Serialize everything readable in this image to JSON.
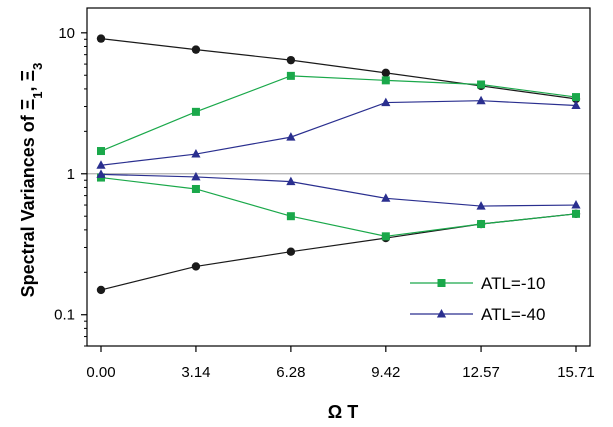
{
  "chart_data": {
    "type": "line",
    "title": "",
    "xlabel": "Ω T",
    "ylabel_main": "Spectral Variances of ",
    "ylabel_sym1": "Ξ",
    "ylabel_sub1": "1",
    "ylabel_sep": ", ",
    "ylabel_sym2": "Ξ",
    "ylabel_sub2": "3",
    "y_scale": "log",
    "xlim": [
      0,
      15.71
    ],
    "ylim": [
      0.06,
      15
    ],
    "x_ticks": [
      "0.00",
      "3.14",
      "6.28",
      "9.42",
      "12.57",
      "15.71"
    ],
    "x": [
      0,
      3.14,
      6.28,
      9.42,
      12.57,
      15.71
    ],
    "y_ticks": [
      "0.1",
      "1",
      "10"
    ],
    "y_tick_values": [
      0.1,
      1,
      10
    ],
    "reference_line": 1,
    "reference_color": "#b0b0b0",
    "legend_position": "bottom-right",
    "series": [
      {
        "legend": "",
        "marker": "circle",
        "color": "#1a1a1a",
        "values": [
          9.1,
          7.6,
          6.4,
          5.2,
          4.2,
          3.4
        ]
      },
      {
        "legend": "",
        "marker": "circle",
        "color": "#1a1a1a",
        "values": [
          0.15,
          0.22,
          0.28,
          0.35,
          0.44,
          0.52
        ]
      },
      {
        "legend": "ATL=-10",
        "marker": "square",
        "color": "#1aa84a",
        "values": [
          1.45,
          2.75,
          4.95,
          4.6,
          4.3,
          3.5
        ]
      },
      {
        "legend": "",
        "marker": "square",
        "color": "#1aa84a",
        "values": [
          0.94,
          0.78,
          0.5,
          0.36,
          0.44,
          0.52
        ]
      },
      {
        "legend": "ATL=-40",
        "marker": "triangle",
        "color": "#2a2f8f",
        "values": [
          1.15,
          1.38,
          1.82,
          3.2,
          3.3,
          3.05
        ]
      },
      {
        "legend": "",
        "marker": "triangle",
        "color": "#2a2f8f",
        "values": [
          0.99,
          0.95,
          0.88,
          0.67,
          0.59,
          0.6
        ]
      }
    ]
  }
}
